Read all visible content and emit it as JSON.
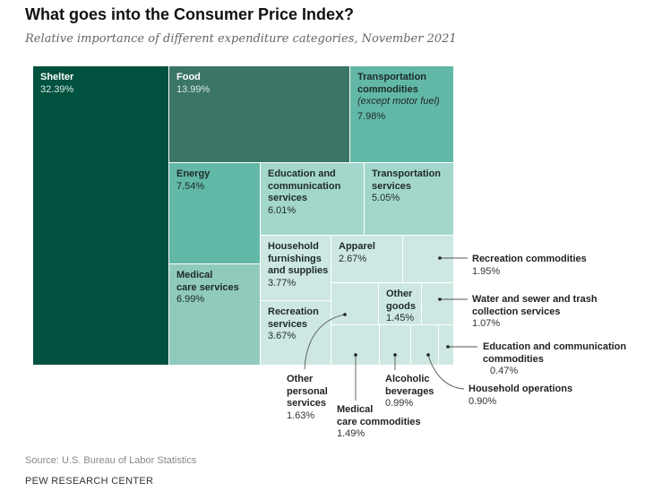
{
  "title": "What goes into the Consumer Price Index?",
  "subtitle": "Relative importance of different expenditure categories, November 2021",
  "source": "Source: U.S. Bureau of Labor Statistics",
  "brand": "PEW RESEARCH CENTER",
  "chart_data": {
    "type": "treemap",
    "title": "What goes into the Consumer Price Index?",
    "subtitle": "Relative importance of different expenditure categories, November 2021",
    "items": [
      {
        "name": "Shelter",
        "value": 32.39,
        "label": "32.39%",
        "color": "#00513e"
      },
      {
        "name": "Food",
        "value": 13.99,
        "label": "13.99%",
        "color": "#3b7566"
      },
      {
        "name": "Transportation commodities",
        "note": "(except motor fuel)",
        "value": 7.98,
        "label": "7.98%",
        "color": "#62b8a6"
      },
      {
        "name": "Energy",
        "value": 7.54,
        "label": "7.54%",
        "color": "#62b8a6"
      },
      {
        "name": "Medical care services",
        "value": 6.99,
        "label": "6.99%",
        "color": "#8fcabd"
      },
      {
        "name": "Education and communication services",
        "value": 6.01,
        "label": "6.01%",
        "color": "#a4d7cc"
      },
      {
        "name": "Transportation services",
        "value": 5.05,
        "label": "5.05%",
        "color": "#a4d7cc"
      },
      {
        "name": "Household furnishings and supplies",
        "value": 3.77,
        "label": "3.77%",
        "color": "#cde8e2"
      },
      {
        "name": "Recreation services",
        "value": 3.67,
        "label": "3.67%",
        "color": "#cde8e2"
      },
      {
        "name": "Apparel",
        "value": 2.67,
        "label": "2.67%",
        "color": "#cde8e2"
      },
      {
        "name": "Recreation commodities",
        "value": 1.95,
        "label": "1.95%",
        "color": "#cde8e2"
      },
      {
        "name": "Other personal services",
        "value": 1.63,
        "label": "1.63%",
        "color": "#cde8e2"
      },
      {
        "name": "Other goods",
        "value": 1.45,
        "label": "1.45%",
        "color": "#cde8e2"
      },
      {
        "name": "Water and sewer and trash collection services",
        "value": 1.07,
        "label": "1.07%",
        "color": "#cde8e2"
      },
      {
        "name": "Medical care commodities",
        "value": 1.49,
        "label": "1.49%",
        "color": "#cde8e2"
      },
      {
        "name": "Alcoholic beverages",
        "value": 0.99,
        "label": "0.99%",
        "color": "#cde8e2"
      },
      {
        "name": "Household operations",
        "value": 0.9,
        "label": "0.90%",
        "color": "#cde8e2"
      },
      {
        "name": "Education and communication commodities",
        "value": 0.47,
        "label": "0.47%",
        "color": "#cde8e2"
      }
    ]
  }
}
